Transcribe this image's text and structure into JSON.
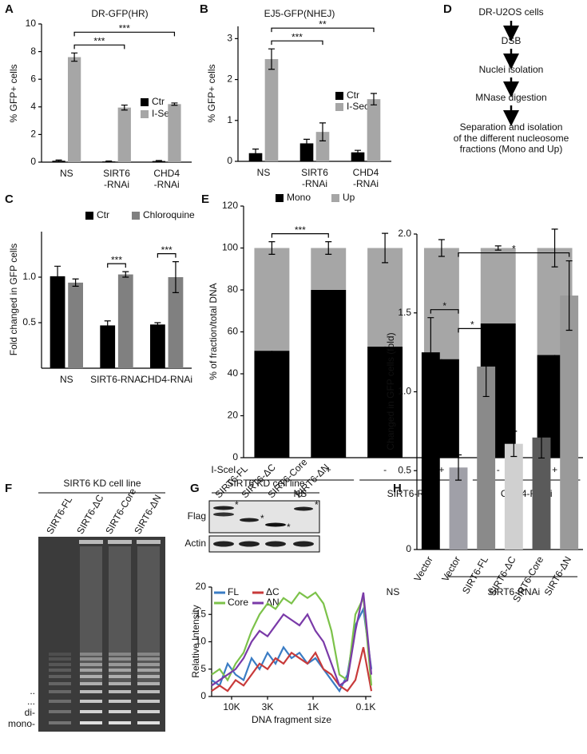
{
  "chart_data": [
    {
      "panel": "A",
      "type": "bar",
      "title": "DR-GFP(HR)",
      "y_label": "% GFP+ cells",
      "categories": [
        "NS",
        "SIRT6\n-RNAi",
        "CHD4\n-RNAi"
      ],
      "series": [
        {
          "name": "Ctr",
          "color": "#000000",
          "values": [
            0.1,
            0.05,
            0.08
          ],
          "errors": [
            0.05,
            0.03,
            0.04
          ]
        },
        {
          "name": "I-SecI",
          "color": "#a6a6a6",
          "values": [
            7.6,
            3.95,
            4.2
          ],
          "errors": [
            0.3,
            0.18,
            0.08
          ]
        }
      ],
      "ylim": [
        0,
        10
      ],
      "yticks": [
        0,
        2,
        4,
        6,
        8,
        10
      ],
      "brackets": [
        {
          "from": [
            0,
            1
          ],
          "to": [
            1,
            1
          ],
          "label": "***"
        },
        {
          "from": [
            0,
            1
          ],
          "to": [
            2,
            1
          ],
          "label": "***"
        }
      ]
    },
    {
      "panel": "B",
      "type": "bar",
      "title": "EJ5-GFP(NHEJ)",
      "y_label": "% GFP+ cells",
      "categories": [
        "NS",
        "SIRT6\n-RNAi",
        "CHD4\n-RNAi"
      ],
      "series": [
        {
          "name": "Ctr",
          "color": "#000000",
          "values": [
            0.2,
            0.44,
            0.22
          ],
          "errors": [
            0.1,
            0.1,
            0.05
          ]
        },
        {
          "name": "I-SecI",
          "color": "#a6a6a6",
          "values": [
            2.5,
            0.72,
            1.52
          ],
          "errors": [
            0.25,
            0.22,
            0.14
          ]
        }
      ],
      "ylim": [
        0,
        3.3
      ],
      "yticks": [
        0,
        1,
        2,
        3
      ],
      "brackets": [
        {
          "from": [
            0,
            1
          ],
          "to": [
            1,
            1
          ],
          "label": "***"
        },
        {
          "from": [
            0,
            1
          ],
          "to": [
            2,
            1
          ],
          "label": "**"
        }
      ]
    },
    {
      "panel": "C",
      "type": "bar",
      "y_label": "Fold changed in GFP cells",
      "categories": [
        "NS",
        "SIRT6-RNAi",
        "CHD4-RNAi"
      ],
      "series": [
        {
          "name": "Ctr",
          "color": "#000000",
          "values": [
            1.01,
            0.47,
            0.48
          ],
          "errors": [
            0.11,
            0.05,
            0.02
          ]
        },
        {
          "name": "Chloroquine",
          "color": "#808080",
          "values": [
            0.94,
            1.03,
            1.0
          ],
          "errors": [
            0.04,
            0.03,
            0.17
          ]
        }
      ],
      "ylim": [
        0,
        1.5
      ],
      "yticks": [
        0.5,
        {
          "value": 1,
          "label": "1.0"
        }
      ],
      "brackets": [
        {
          "from": [
            1,
            0
          ],
          "to": [
            1,
            1
          ],
          "label": "***"
        },
        {
          "from": [
            2,
            0
          ],
          "to": [
            2,
            1
          ],
          "label": "***"
        }
      ]
    },
    {
      "panel": "E",
      "type": "stacked_bar",
      "y_label": "% of fraction/total DNA",
      "x_label": "I-Scel",
      "categories": [
        "-",
        "+",
        "-",
        "+",
        "-",
        "+"
      ],
      "group_labels": [
        "NS",
        "SIRT6-RNAi",
        "CHD4-RNAi"
      ],
      "series": [
        {
          "name": "Mono",
          "color": "#000000",
          "values": [
            51,
            80,
            53,
            47,
            64,
            49
          ],
          "errors": [
            0.5,
            1.5,
            3,
            8,
            3,
            5
          ]
        },
        {
          "name": "Up",
          "color": "#a6a6a6",
          "values": [
            49,
            20,
            47,
            53,
            36,
            51
          ],
          "errors": [
            3,
            3,
            7,
            4,
            1,
            9
          ]
        }
      ],
      "ylim": [
        0,
        120
      ],
      "yticks": [
        0,
        20,
        40,
        60,
        80,
        100,
        120
      ],
      "brackets": [
        {
          "from": [
            0
          ],
          "to": [
            1
          ],
          "label": "***"
        }
      ]
    },
    {
      "type": "line",
      "y_label": "Relative Intensity",
      "x_label": "DNA fragment size",
      "x": [
        0,
        5,
        10,
        15,
        20,
        25,
        30,
        35,
        40,
        45,
        50,
        55,
        60,
        65,
        70,
        75,
        80,
        85,
        90,
        95,
        100
      ],
      "series": [
        {
          "name": "FL",
          "color": "#3a7cc4",
          "values": [
            3,
            2,
            6,
            4,
            3,
            7,
            5,
            8,
            6,
            9,
            7,
            8,
            6,
            7,
            5,
            3,
            1,
            4,
            13,
            16,
            5
          ]
        },
        {
          "name": "ΔC",
          "color": "#c83a3a",
          "values": [
            1,
            2,
            1,
            3,
            2,
            4,
            6,
            5,
            7,
            6,
            8,
            7,
            6,
            8,
            5,
            4,
            2,
            1,
            3,
            9,
            1
          ]
        },
        {
          "name": "Core",
          "color": "#7cc24a",
          "values": [
            4,
            5,
            3,
            6,
            8,
            12,
            15,
            17,
            16,
            18,
            17,
            19,
            18,
            19,
            17,
            12,
            4,
            3,
            15,
            18,
            2
          ]
        },
        {
          "name": "ΔN",
          "color": "#7a3aa8",
          "values": [
            2,
            3,
            4,
            5,
            7,
            10,
            12,
            11,
            13,
            15,
            14,
            13,
            15,
            12,
            10,
            6,
            2,
            3,
            12,
            19,
            4
          ]
        }
      ],
      "xlim": [
        0,
        100
      ],
      "xticks": [
        {
          "value": 12.5,
          "label": "10K"
        },
        {
          "value": 35,
          "label": "3K"
        },
        {
          "value": 63.5,
          "label": "1K"
        },
        {
          "value": 96.5,
          "label": "0.1K"
        }
      ],
      "ylim": [
        0,
        20
      ],
      "yticks": [
        0,
        5,
        10,
        15,
        20
      ]
    },
    {
      "panel": "H",
      "type": "bar",
      "y_label": "Changed in GFP cells (fold)",
      "categories": [
        "Vector",
        "Vector",
        "SIRT6-FL",
        "SIRT6-ΔC",
        "SIRT6-Core",
        "SIRT6-ΔN"
      ],
      "group_labels": [
        "NS",
        "SIRT6-RNAi"
      ],
      "series": [
        {
          "colors": [
            "#000000",
            "#a0a0a8",
            "#8a8a8a",
            "#d0d0d0",
            "#5a5a5a",
            "#9a9a9a"
          ],
          "values": [
            1.25,
            0.52,
            1.16,
            0.67,
            0.71,
            1.61
          ],
          "errors": [
            0.22,
            0.08,
            0.19,
            0.08,
            0.13,
            0.22
          ]
        }
      ],
      "ylim": [
        0,
        2
      ],
      "yticks": [
        0,
        0.5,
        {
          "value": 1,
          "label": "1.0"
        },
        1.5,
        {
          "value": 2,
          "label": "2.0"
        }
      ],
      "brackets": [
        {
          "from": [
            0
          ],
          "to": [
            1
          ],
          "label": "*"
        },
        {
          "from": [
            1
          ],
          "to": [
            2
          ],
          "label": "*"
        },
        {
          "from": [
            1
          ],
          "to": [
            5
          ],
          "label": "*"
        }
      ]
    }
  ],
  "panel_d": {
    "label": "D",
    "nodes": [
      "DR-U2OS cells",
      "DSB",
      "Nuclei isolation",
      "MNase digestion",
      "Separation and isolation\nof the different nucleosome\nfractions (Mono and Up)"
    ]
  },
  "panel_f": {
    "label": "F",
    "title": "SIRT6 KD cell line",
    "lanes": [
      "SIRT6-FL",
      "SIRT6-ΔC",
      "SIRT6-Core",
      "SIRT6-ΔN"
    ],
    "markers": [
      "..",
      "...",
      "di-",
      "mono-"
    ]
  },
  "panel_g": {
    "label": "G",
    "title": "SIRT6 KD cell line",
    "lanes": [
      "SIRT6-FL",
      "SIRT6-ΔC",
      "SIRT6-Core",
      "SIRT6-ΔN"
    ],
    "rows": [
      "Flag",
      "Actin"
    ],
    "band_marker": "*"
  }
}
